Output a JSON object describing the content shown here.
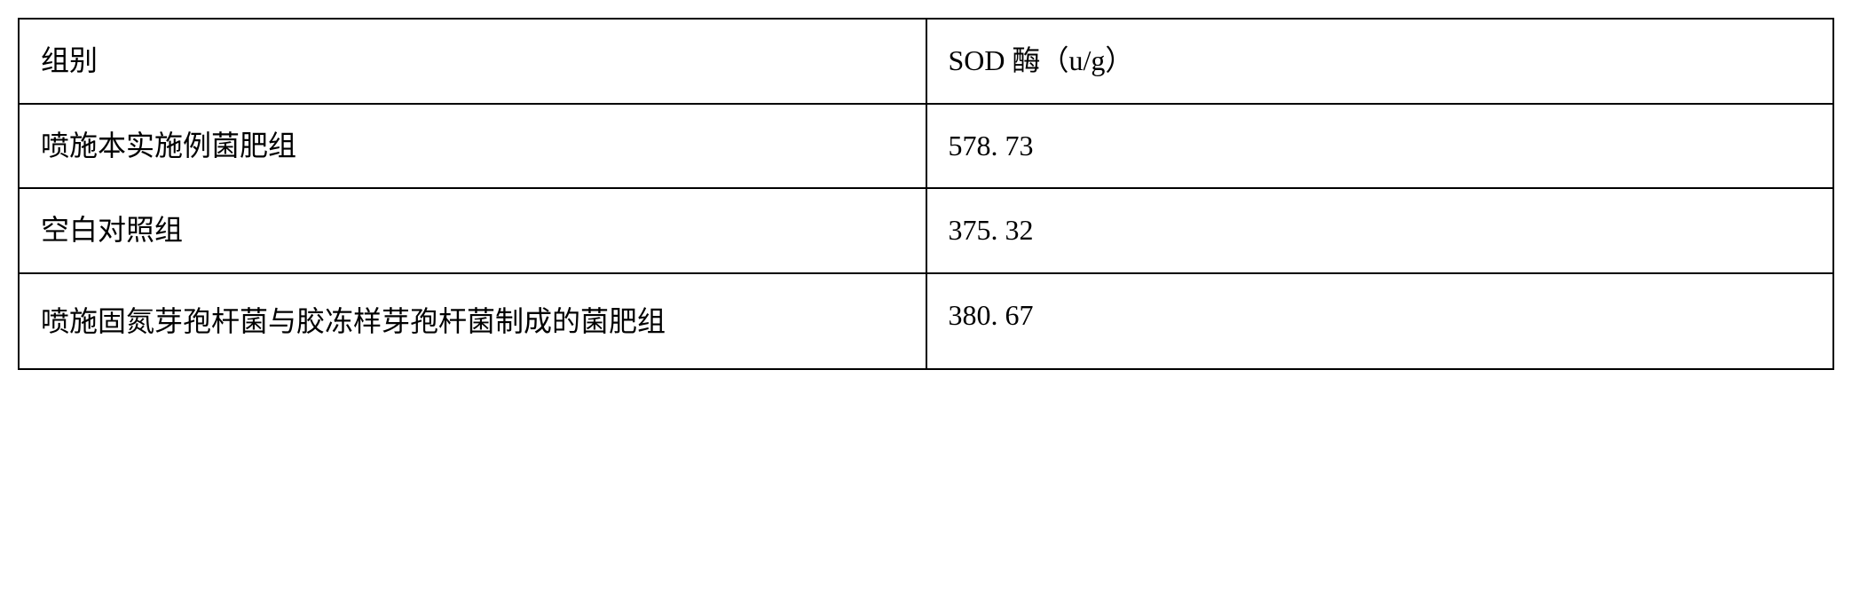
{
  "table": {
    "columns": [
      {
        "label": "组别"
      },
      {
        "label": "SOD 酶（u/g）"
      }
    ],
    "rows": [
      {
        "group": "喷施本实施例菌肥组",
        "sod_value": "578. 73"
      },
      {
        "group": "空白对照组",
        "sod_value": "375. 32"
      },
      {
        "group": "喷施固氮芽孢杆菌与胶冻样芽孢杆菌制成的菌肥组",
        "sod_value": "380. 67"
      }
    ],
    "border_color": "#000000",
    "background_color": "#ffffff",
    "text_color": "#000000",
    "font_size": 32,
    "cell_padding": "18px 24px"
  }
}
